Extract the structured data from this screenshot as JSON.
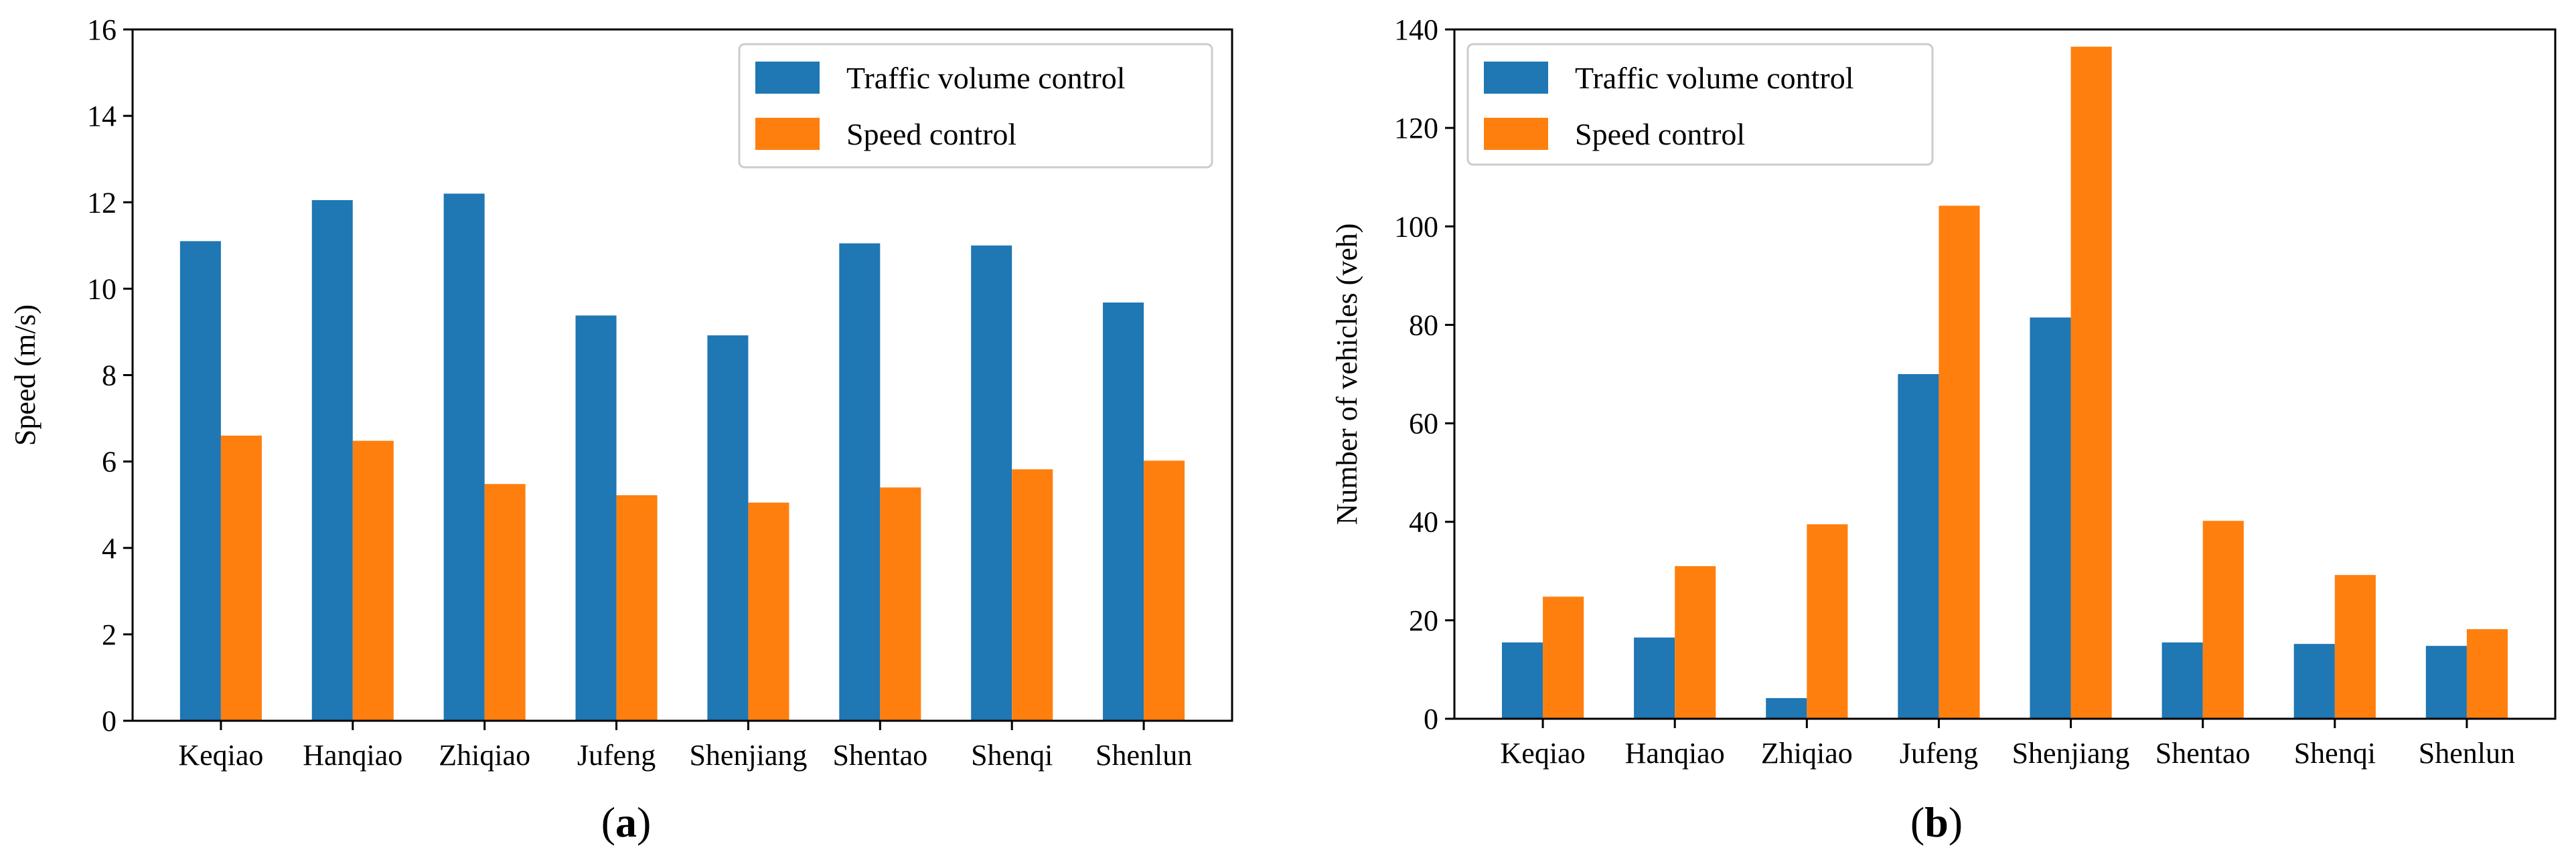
{
  "chart_data": [
    {
      "type": "bar",
      "panel": "a",
      "panel_label": {
        "open": "(",
        "letter": "a",
        "close": ")"
      },
      "categories": [
        "Keqiao",
        "Hanqiao",
        "Zhiqiao",
        "Jufeng",
        "Shenjiang",
        "Shentao",
        "Shenqi",
        "Shenlun"
      ],
      "series": [
        {
          "name": "Traffic volume control",
          "color": "#1f77b4",
          "values": [
            11.1,
            12.05,
            12.2,
            9.38,
            8.92,
            11.05,
            11.0,
            9.68
          ]
        },
        {
          "name": "Speed control",
          "color": "#ff7f0e",
          "values": [
            6.6,
            6.48,
            5.48,
            5.22,
            5.05,
            5.4,
            5.82,
            6.02
          ]
        }
      ],
      "xlabel": "",
      "ylabel": "Speed (m/s)",
      "ylim": [
        0,
        16
      ],
      "yticks": [
        0,
        2,
        4,
        6,
        8,
        10,
        12,
        14,
        16
      ],
      "legend": "top-right"
    },
    {
      "type": "bar",
      "panel": "b",
      "panel_label": {
        "open": "(",
        "letter": "b",
        "close": ")"
      },
      "categories": [
        "Keqiao",
        "Hanqiao",
        "Zhiqiao",
        "Jufeng",
        "Shenjiang",
        "Shentao",
        "Shenqi",
        "Shenlun"
      ],
      "series": [
        {
          "name": "Traffic volume control",
          "color": "#1f77b4",
          "values": [
            15.5,
            16.5,
            4.2,
            70.0,
            81.5,
            15.5,
            15.2,
            14.8
          ]
        },
        {
          "name": "Speed control",
          "color": "#ff7f0e",
          "values": [
            24.8,
            31.0,
            39.5,
            104.2,
            136.5,
            40.2,
            29.2,
            18.2
          ]
        }
      ],
      "xlabel": "",
      "ylabel": "Number of vehicles (veh)",
      "ylim": [
        0,
        140
      ],
      "yticks": [
        0,
        20,
        40,
        60,
        80,
        100,
        120,
        140
      ],
      "legend": "top-left"
    }
  ]
}
